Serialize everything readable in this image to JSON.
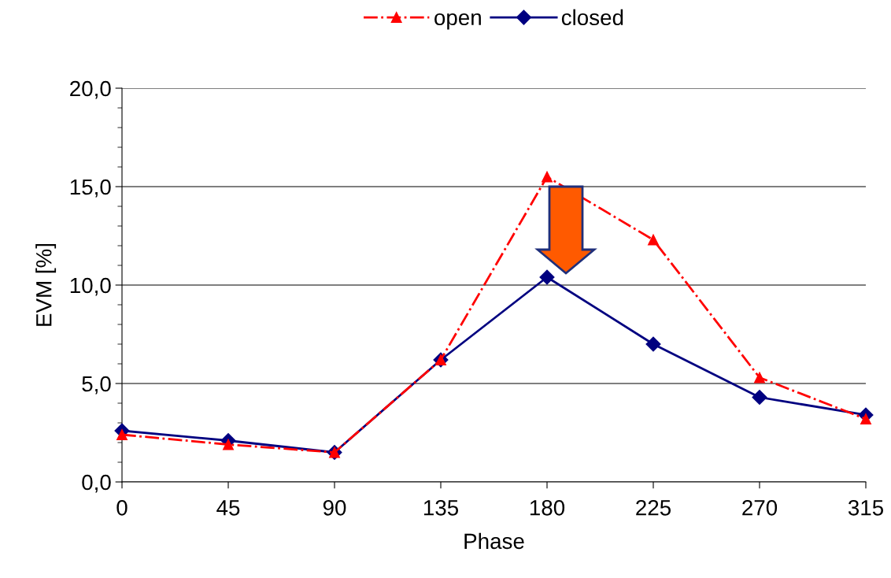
{
  "chart_data": {
    "type": "line",
    "xlabel": "Phase",
    "ylabel": "EVM [%]",
    "x": [
      0,
      45,
      90,
      135,
      180,
      225,
      270,
      315
    ],
    "series": [
      {
        "name": "open",
        "color": "#ff0000",
        "values": [
          2.4,
          1.9,
          1.5,
          6.2,
          15.5,
          12.3,
          5.3,
          3.2
        ],
        "marker": "triangle",
        "line_style": "dashdot"
      },
      {
        "name": "closed",
        "color": "#000080",
        "values": [
          2.6,
          2.1,
          1.5,
          6.2,
          10.4,
          7.0,
          4.3,
          3.4
        ],
        "marker": "diamond",
        "line_style": "solid"
      }
    ],
    "xlim": [
      0,
      315
    ],
    "xticks": [
      0,
      45,
      90,
      135,
      180,
      225,
      270,
      315
    ],
    "ylim": [
      0,
      20
    ],
    "yticks": [
      {
        "value": 0,
        "label": "0,0"
      },
      {
        "value": 5,
        "label": "5,0"
      },
      {
        "value": 10,
        "label": "10,0"
      },
      {
        "value": 15,
        "label": "15,0"
      },
      {
        "value": 20,
        "label": "20,0"
      }
    ],
    "grid": "y",
    "legend": "top"
  }
}
